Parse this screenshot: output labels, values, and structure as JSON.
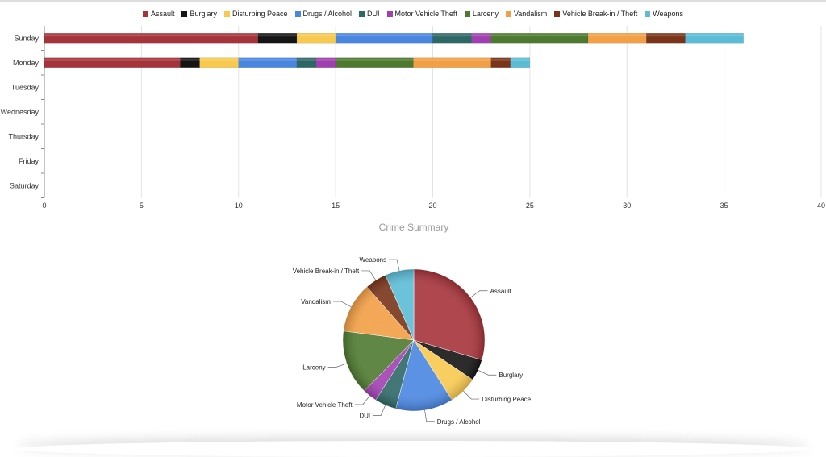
{
  "chart_data": [
    {
      "type": "bar",
      "orientation": "horizontal",
      "stacked": true,
      "categories": [
        "Sunday",
        "Monday",
        "Tuesday",
        "Wednesday",
        "Thursday",
        "Friday",
        "Saturday"
      ],
      "xlim": [
        0,
        40
      ],
      "xticks": [
        0,
        5,
        10,
        15,
        20,
        25,
        30,
        35,
        40
      ],
      "grid": true,
      "legend": "top",
      "series": [
        {
          "name": "Assault",
          "color": "#a5333a",
          "values": [
            11,
            7,
            0,
            0,
            0,
            0,
            0
          ]
        },
        {
          "name": "Burglary",
          "color": "#151515",
          "values": [
            2,
            1,
            0,
            0,
            0,
            0,
            0
          ]
        },
        {
          "name": "Disturbing Peace",
          "color": "#f7c94e",
          "values": [
            2,
            2,
            0,
            0,
            0,
            0,
            0
          ]
        },
        {
          "name": "Drugs / Alcohol",
          "color": "#4a86e0",
          "values": [
            5,
            3,
            0,
            0,
            0,
            0,
            0
          ]
        },
        {
          "name": "DUI",
          "color": "#2e6866",
          "values": [
            2,
            1,
            0,
            0,
            0,
            0,
            0
          ]
        },
        {
          "name": "Motor Vehicle Theft",
          "color": "#a040b0",
          "values": [
            1,
            1,
            0,
            0,
            0,
            0,
            0
          ]
        },
        {
          "name": "Larceny",
          "color": "#4e7a30",
          "values": [
            5,
            4,
            0,
            0,
            0,
            0,
            0
          ]
        },
        {
          "name": "Vandalism",
          "color": "#f29f45",
          "values": [
            3,
            4,
            0,
            0,
            0,
            0,
            0
          ]
        },
        {
          "name": "Vehicle Break-in / Theft",
          "color": "#7a3419",
          "values": [
            2,
            1,
            0,
            0,
            0,
            0,
            0
          ]
        },
        {
          "name": "Weapons",
          "color": "#5bbcd6",
          "values": [
            3,
            1,
            0,
            0,
            0,
            0,
            0
          ]
        }
      ]
    },
    {
      "type": "pie",
      "title": "Crime Summary",
      "slices": [
        {
          "label": "Assault",
          "value": 18,
          "color": "#a5333a"
        },
        {
          "label": "Burglary",
          "value": 3,
          "color": "#151515"
        },
        {
          "label": "Disturbing Peace",
          "value": 4,
          "color": "#f7c94e"
        },
        {
          "label": "Drugs / Alcohol",
          "value": 8,
          "color": "#4a86e0"
        },
        {
          "label": "DUI",
          "value": 3,
          "color": "#2e6866"
        },
        {
          "label": "Motor Vehicle Theft",
          "value": 2,
          "color": "#a040b0"
        },
        {
          "label": "Larceny",
          "value": 9,
          "color": "#4e7a30"
        },
        {
          "label": "Vandalism",
          "value": 7,
          "color": "#f29f45"
        },
        {
          "label": "Vehicle Break-in / Theft",
          "value": 3,
          "color": "#7a3419"
        },
        {
          "label": "Weapons",
          "value": 4,
          "color": "#5bbcd6"
        }
      ]
    }
  ]
}
